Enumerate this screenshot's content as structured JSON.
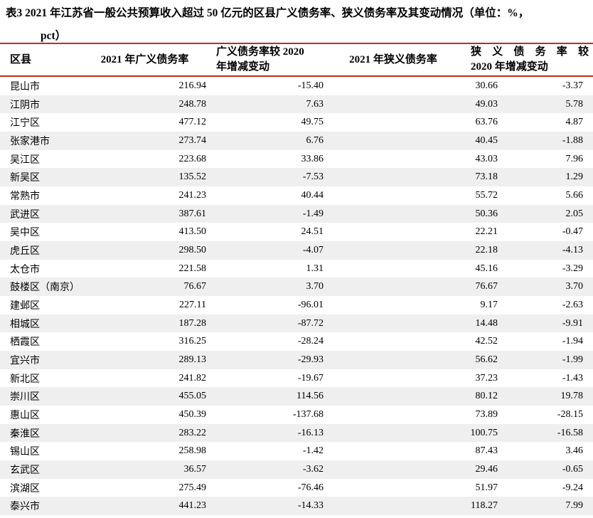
{
  "title": {
    "line1": "表3 2021 年江苏省一般公共预算收入超过 50 亿元的区县广义债务率、狭义债务率及其变动情况（单位：%，",
    "line2": "pct）"
  },
  "colors": {
    "rule_red": "#b6311c",
    "row_stripe": "#efefef"
  },
  "table": {
    "header": {
      "col1": "区县",
      "col2": "2021 年广义债务率",
      "col3_line1": "广义债务率较 2020",
      "col3_line2": "年增减变动",
      "col4": "2021 年狭义债务率",
      "col5_line1": "狭义债务率较",
      "col5_line2": "2020 年增减变动"
    },
    "columns": [
      "区县",
      "2021 年广义债务率",
      "广义债务率较 2020 年增减变动",
      "2021 年狭义债务率",
      "狭义债务率较 2020 年增减变动"
    ],
    "rows": [
      [
        "昆山市",
        "216.94",
        "-15.40",
        "30.66",
        "-3.37"
      ],
      [
        "江阴市",
        "248.78",
        "7.63",
        "49.03",
        "5.78"
      ],
      [
        "江宁区",
        "477.12",
        "49.75",
        "63.76",
        "4.87"
      ],
      [
        "张家港市",
        "273.74",
        "6.76",
        "40.45",
        "-1.88"
      ],
      [
        "吴江区",
        "223.68",
        "33.86",
        "43.03",
        "7.96"
      ],
      [
        "新吴区",
        "135.52",
        "-7.53",
        "73.18",
        "1.29"
      ],
      [
        "常熟市",
        "241.23",
        "40.44",
        "55.72",
        "5.66"
      ],
      [
        "武进区",
        "387.61",
        "-1.49",
        "50.36",
        "2.05"
      ],
      [
        "吴中区",
        "413.50",
        "24.51",
        "22.21",
        "-0.47"
      ],
      [
        "虎丘区",
        "298.50",
        "-4.07",
        "22.18",
        "-4.13"
      ],
      [
        "太仓市",
        "221.58",
        "1.31",
        "45.16",
        "-3.29"
      ],
      [
        "鼓楼区（南京）",
        "76.67",
        "3.70",
        "76.67",
        "3.70"
      ],
      [
        "建邺区",
        "227.11",
        "-96.01",
        "9.17",
        "-2.63"
      ],
      [
        "相城区",
        "187.28",
        "-87.72",
        "14.48",
        "-9.91"
      ],
      [
        "栖霞区",
        "316.25",
        "-28.24",
        "42.52",
        "-1.94"
      ],
      [
        "宜兴市",
        "289.13",
        "-29.93",
        "56.62",
        "-1.99"
      ],
      [
        "新北区",
        "241.82",
        "-19.67",
        "37.23",
        "-1.43"
      ],
      [
        "崇川区",
        "455.05",
        "114.56",
        "80.12",
        "19.78"
      ],
      [
        "惠山区",
        "450.39",
        "-137.68",
        "73.89",
        "-28.15"
      ],
      [
        "秦淮区",
        "283.22",
        "-16.13",
        "100.75",
        "-16.58"
      ],
      [
        "锡山区",
        "258.98",
        "-1.42",
        "87.43",
        "3.46"
      ],
      [
        "玄武区",
        "36.57",
        "-3.62",
        "29.46",
        "-0.65"
      ],
      [
        "滨湖区",
        "275.49",
        "-76.46",
        "51.97",
        "-9.24"
      ],
      [
        "泰兴市",
        "441.23",
        "-14.33",
        "118.27",
        "7.99"
      ]
    ]
  }
}
